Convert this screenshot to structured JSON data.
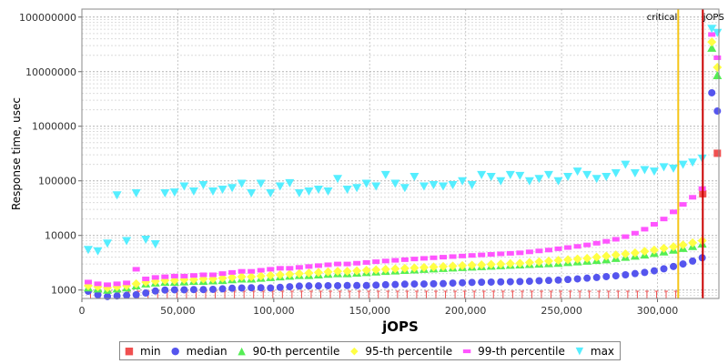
{
  "chart_data": {
    "type": "scatter",
    "xlabel": "jOPS",
    "ylabel": "Response time, usec",
    "xlim": [
      0,
      332000
    ],
    "ylim": [
      700,
      140000000
    ],
    "yscale": "log",
    "grid": true,
    "legend_position": "bottom",
    "xticks": [
      0,
      50000,
      100000,
      150000,
      200000,
      250000,
      300000
    ],
    "xtick_labels": [
      "0",
      "50,000",
      "100,000",
      "150,000",
      "200,000",
      "250,000",
      "300,000"
    ],
    "yticks": [
      1000,
      10000,
      100000,
      1000000,
      10000000,
      100000000
    ],
    "ytick_labels": [
      "1000",
      "10000",
      "100000",
      "1000000",
      "10000000",
      "100000000"
    ],
    "markers": [
      {
        "label": "critical",
        "x": 310800,
        "color": "#f5c518"
      },
      {
        "label": "jOPS",
        "x": 323600,
        "color": "#cc0000"
      }
    ],
    "series": [
      {
        "name": "min",
        "color": "#f05050",
        "symbol": "square",
        "x": [
          323600,
          331200
        ],
        "y": [
          58000,
          320000
        ]
      },
      {
        "name": "median",
        "color": "#5555ee",
        "symbol": "circle",
        "x": [
          3300,
          8300,
          13300,
          18300,
          23300,
          28300,
          33300,
          38300,
          43300,
          48300,
          53300,
          58300,
          63300,
          68300,
          73300,
          78300,
          83300,
          88300,
          93300,
          98300,
          103300,
          108300,
          113300,
          118300,
          123300,
          128300,
          133300,
          138300,
          143300,
          148300,
          153300,
          158300,
          163300,
          168300,
          173300,
          178300,
          183300,
          188300,
          193300,
          198300,
          203300,
          208300,
          213300,
          218300,
          223300,
          228300,
          233300,
          238300,
          243300,
          248300,
          253300,
          258300,
          263300,
          268300,
          273300,
          278300,
          283300,
          288300,
          293300,
          298300,
          303300,
          308300,
          313300,
          318300,
          323300,
          328300,
          331200
        ],
        "y": [
          950,
          820,
          760,
          780,
          800,
          820,
          880,
          960,
          1000,
          1010,
          1010,
          1020,
          1020,
          1030,
          1050,
          1080,
          1090,
          1100,
          1100,
          1090,
          1120,
          1150,
          1180,
          1190,
          1190,
          1200,
          1200,
          1210,
          1210,
          1210,
          1230,
          1250,
          1260,
          1280,
          1290,
          1290,
          1300,
          1310,
          1340,
          1360,
          1380,
          1390,
          1400,
          1410,
          1420,
          1430,
          1450,
          1480,
          1500,
          1520,
          1560,
          1600,
          1650,
          1700,
          1760,
          1820,
          1900,
          2000,
          2100,
          2250,
          2450,
          2700,
          3000,
          3400,
          3900,
          4100000,
          1900000
        ]
      },
      {
        "name": "90-th percentile",
        "color": "#55ee55",
        "symbol": "triangle-up",
        "x": [
          3300,
          8300,
          13300,
          18300,
          23300,
          28300,
          33300,
          38300,
          43300,
          48300,
          53300,
          58300,
          63300,
          68300,
          73300,
          78300,
          83300,
          88300,
          93300,
          98300,
          103300,
          108300,
          113300,
          118300,
          123300,
          128300,
          133300,
          138300,
          143300,
          148300,
          153300,
          158300,
          163300,
          168300,
          173300,
          178300,
          183300,
          188300,
          193300,
          198300,
          203300,
          208300,
          213300,
          218300,
          223300,
          228300,
          233300,
          238300,
          243300,
          248300,
          253300,
          258300,
          263300,
          268300,
          273300,
          278300,
          283300,
          288300,
          293300,
          298300,
          303300,
          308300,
          313300,
          318300,
          323300,
          328300,
          331200
        ],
        "y": [
          1100,
          1050,
          1000,
          1050,
          1100,
          1200,
          1300,
          1350,
          1400,
          1400,
          1420,
          1450,
          1450,
          1480,
          1500,
          1550,
          1600,
          1600,
          1650,
          1700,
          1750,
          1800,
          1850,
          1850,
          1900,
          1950,
          2000,
          2000,
          2050,
          2100,
          2150,
          2200,
          2250,
          2300,
          2350,
          2400,
          2450,
          2500,
          2550,
          2600,
          2650,
          2700,
          2750,
          2800,
          2850,
          2900,
          2950,
          3000,
          3050,
          3100,
          3200,
          3300,
          3400,
          3500,
          3600,
          3800,
          4000,
          4200,
          4400,
          4700,
          5000,
          5400,
          5800,
          6300,
          7000,
          27000000,
          8500000
        ]
      },
      {
        "name": "95-th percentile",
        "color": "#ffff44",
        "symbol": "diamond",
        "x": [
          3300,
          8300,
          13300,
          18300,
          23300,
          28300,
          33300,
          38300,
          43300,
          48300,
          53300,
          58300,
          63300,
          68300,
          73300,
          78300,
          83300,
          88300,
          93300,
          98300,
          103300,
          108300,
          113300,
          118300,
          123300,
          128300,
          133300,
          138300,
          143300,
          148300,
          153300,
          158300,
          163300,
          168300,
          173300,
          178300,
          183300,
          188300,
          193300,
          198300,
          203300,
          208300,
          213300,
          218300,
          223300,
          228300,
          233300,
          238300,
          243300,
          248300,
          253300,
          258300,
          263300,
          268300,
          273300,
          278300,
          283300,
          288300,
          293300,
          298300,
          303300,
          308300,
          313300,
          318300,
          323300,
          328300,
          331200
        ],
        "y": [
          1200,
          1150,
          1100,
          1150,
          1200,
          1300,
          1400,
          1450,
          1500,
          1500,
          1550,
          1550,
          1600,
          1600,
          1650,
          1700,
          1750,
          1750,
          1800,
          1850,
          1900,
          1950,
          2000,
          2050,
          2100,
          2150,
          2200,
          2200,
          2250,
          2300,
          2350,
          2400,
          2450,
          2500,
          2550,
          2600,
          2650,
          2700,
          2750,
          2800,
          2850,
          2900,
          2950,
          3000,
          3050,
          3100,
          3200,
          3300,
          3400,
          3500,
          3600,
          3700,
          3800,
          4000,
          4200,
          4400,
          4600,
          4800,
          5100,
          5400,
          5800,
          6200,
          6700,
          7300,
          8000,
          35000000,
          12000000
        ]
      },
      {
        "name": "99-th percentile",
        "color": "#ff55ff",
        "symbol": "rect",
        "x": [
          3300,
          8300,
          13300,
          18300,
          23300,
          28300,
          33300,
          38300,
          43300,
          48300,
          53300,
          58300,
          63300,
          68300,
          73300,
          78300,
          83300,
          88300,
          93300,
          98300,
          103300,
          108300,
          113300,
          118300,
          123300,
          128300,
          133300,
          138300,
          143300,
          148300,
          153300,
          158300,
          163300,
          168300,
          173300,
          178300,
          183300,
          188300,
          193300,
          198300,
          203300,
          208300,
          213300,
          218300,
          223300,
          228300,
          233300,
          238300,
          243300,
          248300,
          253300,
          258300,
          263300,
          268300,
          273300,
          278300,
          283300,
          288300,
          293300,
          298300,
          303300,
          308300,
          313300,
          318300,
          323300,
          328300,
          331200
        ],
        "y": [
          1400,
          1300,
          1250,
          1300,
          1350,
          2400,
          1600,
          1700,
          1750,
          1800,
          1800,
          1850,
          1900,
          1900,
          2000,
          2100,
          2200,
          2200,
          2300,
          2400,
          2500,
          2500,
          2600,
          2700,
          2800,
          2900,
          3000,
          3000,
          3100,
          3200,
          3300,
          3400,
          3500,
          3600,
          3700,
          3800,
          3900,
          4000,
          4100,
          4200,
          4300,
          4400,
          4500,
          4600,
          4700,
          4800,
          5000,
          5200,
          5400,
          5700,
          6000,
          6300,
          6700,
          7200,
          7800,
          8500,
          9500,
          11000,
          13000,
          16000,
          20000,
          27000,
          37000,
          50000,
          72000,
          48000000,
          18000000
        ]
      },
      {
        "name": "max",
        "color": "#55eeff",
        "symbol": "triangle-down",
        "x": [
          3300,
          8300,
          13300,
          18300,
          23300,
          28300,
          33300,
          38300,
          43300,
          48300,
          53300,
          58300,
          63300,
          68300,
          73300,
          78300,
          83300,
          88300,
          93300,
          98300,
          103300,
          108300,
          113300,
          118300,
          123300,
          128300,
          133300,
          138300,
          143300,
          148300,
          153300,
          158300,
          163300,
          168300,
          173300,
          178300,
          183300,
          188300,
          193300,
          198300,
          203300,
          208300,
          213300,
          218300,
          223300,
          228300,
          233300,
          238300,
          243300,
          248300,
          253300,
          258300,
          263300,
          268300,
          273300,
          278300,
          283300,
          288300,
          293300,
          298300,
          303300,
          308300,
          313300,
          318300,
          323300,
          328300,
          331200
        ],
        "y": [
          5500,
          5200,
          7200,
          55000,
          8000,
          60000,
          8500,
          7000,
          60000,
          62000,
          80000,
          65000,
          85000,
          65000,
          70000,
          75000,
          90000,
          60000,
          90000,
          60000,
          80000,
          92000,
          60000,
          65000,
          70000,
          65000,
          110000,
          70000,
          75000,
          90000,
          80000,
          130000,
          90000,
          75000,
          120000,
          80000,
          85000,
          80000,
          85000,
          100000,
          85000,
          130000,
          120000,
          100000,
          130000,
          125000,
          100000,
          110000,
          130000,
          100000,
          120000,
          150000,
          130000,
          110000,
          120000,
          140000,
          200000,
          140000,
          160000,
          150000,
          180000,
          170000,
          200000,
          220000,
          260000,
          62000000,
          52000000
        ]
      }
    ]
  }
}
